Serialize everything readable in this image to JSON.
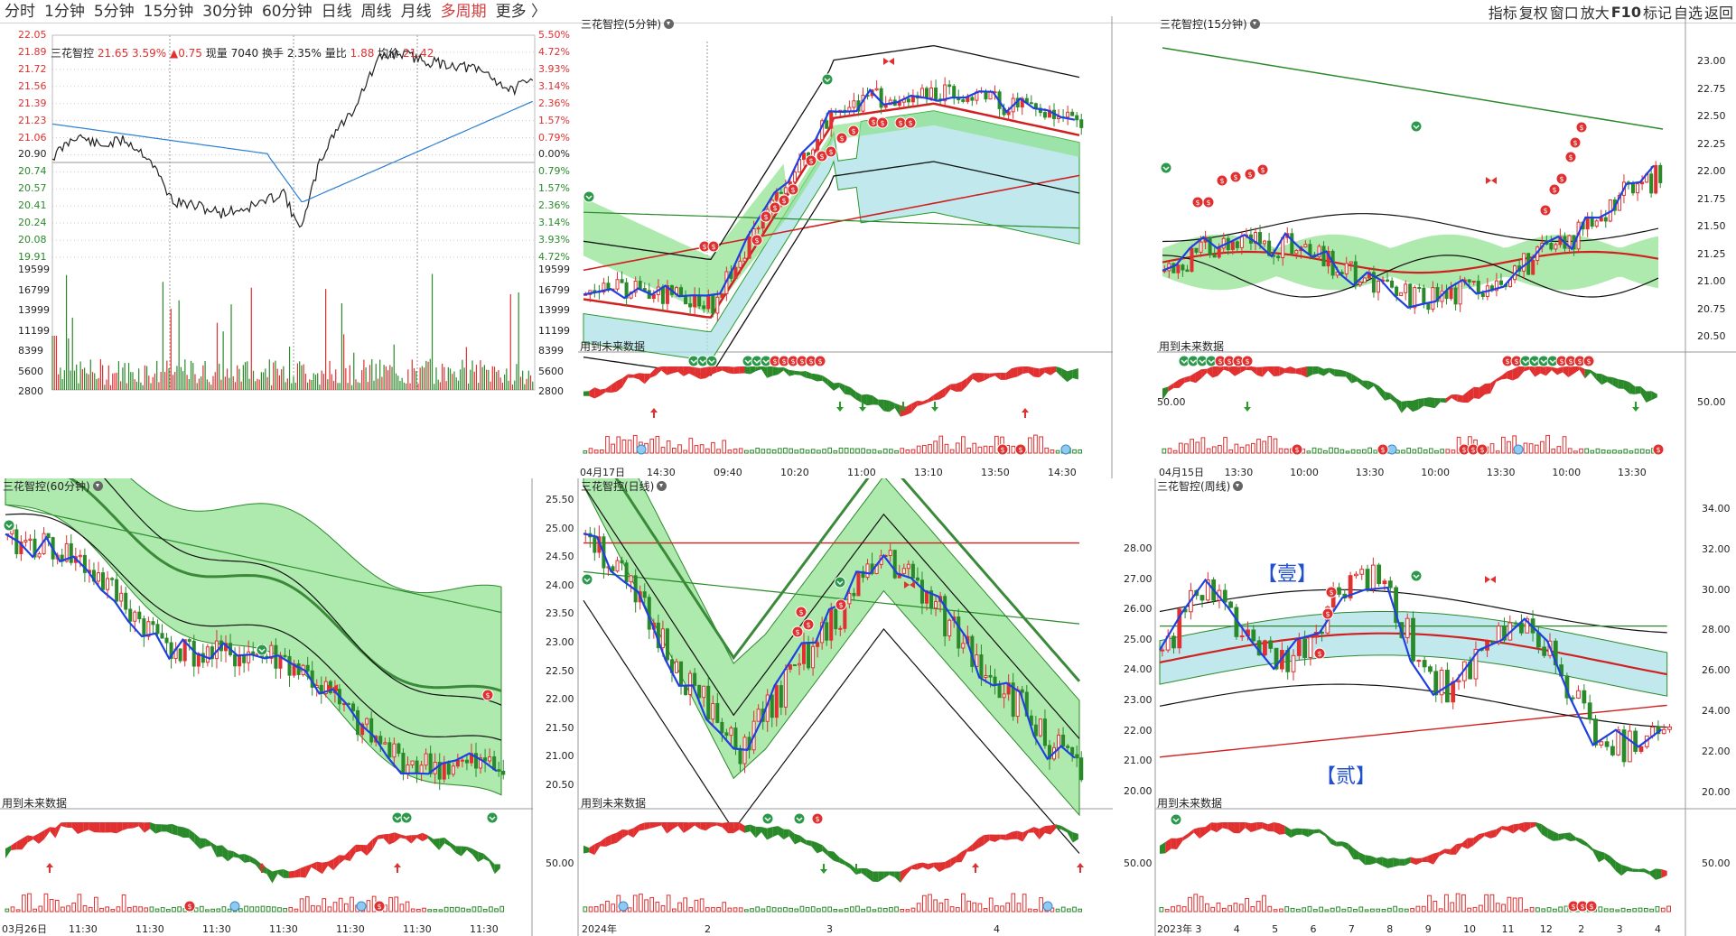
{
  "toolbar": {
    "periods": [
      "分时",
      "1分钟",
      "5分钟",
      "15分钟",
      "30分钟",
      "60分钟",
      "日线",
      "周线",
      "月线",
      "多周期",
      "更多 〉"
    ],
    "active_period": "多周期",
    "right_tools": [
      "指标",
      "复权",
      "窗口",
      "放大",
      "F10",
      "标记",
      "自选",
      "返回"
    ]
  },
  "colors": {
    "up": "#e03030",
    "down": "#2a8a2a",
    "blue": "#2040e0",
    "green_fill": "#8be08b",
    "cyan_fill": "#a6e0e6",
    "dark_green": "#3a9a3a",
    "avg_line": "#2a7fd0"
  },
  "panels": {
    "intraday": {
      "stock": "三花智控",
      "price": "21.65",
      "change_pct": "3.59%",
      "change": "▲0.75",
      "volume_label": "现量",
      "volume": "7040",
      "turnover_label": "换手",
      "turnover": "2.35%",
      "vol_ratio_label": "量比",
      "vol_ratio": "1.88",
      "avg_label": "均价",
      "avg_price": "21.42",
      "price_ticks": [
        "22.05",
        "21.89",
        "21.72",
        "21.56",
        "21.39",
        "21.23",
        "21.06",
        "20.90",
        "20.74",
        "20.57",
        "20.41",
        "20.24",
        "20.08",
        "19.91"
      ],
      "pct_ticks": [
        "5.50%",
        "4.72%",
        "3.93%",
        "3.14%",
        "2.36%",
        "1.57%",
        "0.79%",
        "0.00%",
        "0.79%",
        "1.57%",
        "2.36%",
        "3.14%",
        "3.93%",
        "4.72%"
      ],
      "vol_ticks": [
        "19599",
        "16799",
        "13999",
        "11199",
        "8399",
        "5600",
        "2800"
      ]
    },
    "m5": {
      "title": "三花智控(5分钟)",
      "note": "用到未来数据",
      "x_labels": [
        "04月17日",
        "14:30",
        "09:40",
        "10:20",
        "11:00",
        "13:10",
        "13:50",
        "14:30"
      ]
    },
    "m15": {
      "title": "三花智控(15分钟)",
      "note": "用到未来数据",
      "y_ticks": [
        "23.00",
        "22.75",
        "22.50",
        "22.25",
        "22.00",
        "21.75",
        "21.50",
        "21.25",
        "21.00",
        "20.75",
        "20.50"
      ],
      "ind_tick": "50.00",
      "x_labels": [
        "04月15日",
        "13:30",
        "10:00",
        "13:30",
        "10:00",
        "13:30",
        "10:00",
        "13:30"
      ]
    },
    "m60": {
      "title": "三花智控(60分钟)",
      "note": "用到未来数据",
      "x_labels": [
        "03月26日",
        "11:30",
        "11:30",
        "11:30",
        "11:30",
        "11:30",
        "11:30",
        "11:30"
      ]
    },
    "daily": {
      "title": "三花智控(日线)",
      "note": "用到未来数据",
      "y_ticks": [
        "25.50",
        "25.00",
        "24.50",
        "24.00",
        "23.50",
        "23.00",
        "22.50",
        "22.00",
        "21.50",
        "21.00",
        "20.50"
      ],
      "ind_tick": "50.00",
      "x_labels": [
        "2024年",
        "2",
        "3",
        "4"
      ]
    },
    "weekly": {
      "title": "三花智控(周线)",
      "note": "用到未来数据",
      "annot1": "【壹】",
      "annot2": "【贰】",
      "y_left": [
        "28.00",
        "27.00",
        "26.00",
        "25.00",
        "24.00",
        "23.00",
        "22.00",
        "21.00",
        "20.00"
      ],
      "y_right": [
        "34.00",
        "32.00",
        "30.00",
        "28.00",
        "26.00",
        "24.00",
        "22.00",
        "20.00"
      ],
      "ind_tick": "50.00",
      "x_labels": [
        "2023年",
        "3",
        "4",
        "5",
        "6",
        "7",
        "8",
        "9",
        "10",
        "11",
        "12",
        "2",
        "3",
        "4"
      ]
    }
  }
}
